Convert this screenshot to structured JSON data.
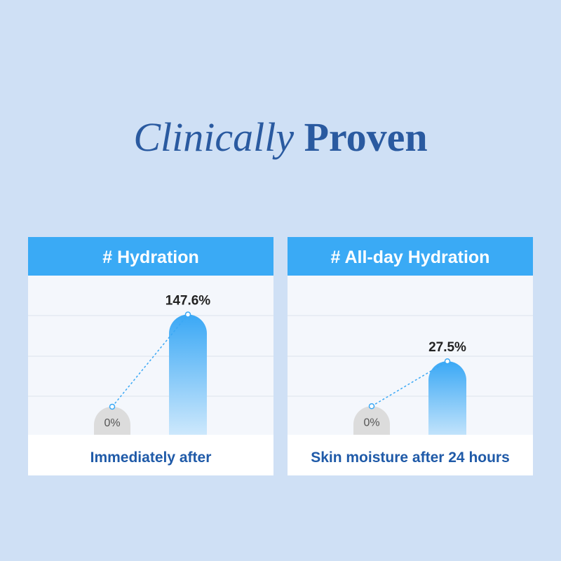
{
  "title": {
    "italic": "Clinically",
    "regular": "Proven"
  },
  "chart_data": [
    {
      "type": "bar",
      "title": "# Hydration",
      "xlabel": "Immediately after",
      "categories": [
        null,
        null
      ],
      "values": [
        0,
        147.6
      ],
      "value_labels": [
        "0%",
        "147.6%"
      ],
      "colors": [
        "#dcdcdc",
        "#3aa8f5"
      ],
      "ylim": [
        -45,
        210
      ]
    },
    {
      "type": "bar",
      "title": "# All-day Hydration",
      "xlabel": "Skin moisture after 24 hours",
      "categories": [
        null,
        null
      ],
      "values": [
        0,
        27.5
      ],
      "value_labels": [
        "0%",
        "27.5%"
      ],
      "colors": [
        "#dcdcdc",
        "#3aa8f5"
      ],
      "ylim": [
        -17.5,
        80
      ]
    }
  ]
}
